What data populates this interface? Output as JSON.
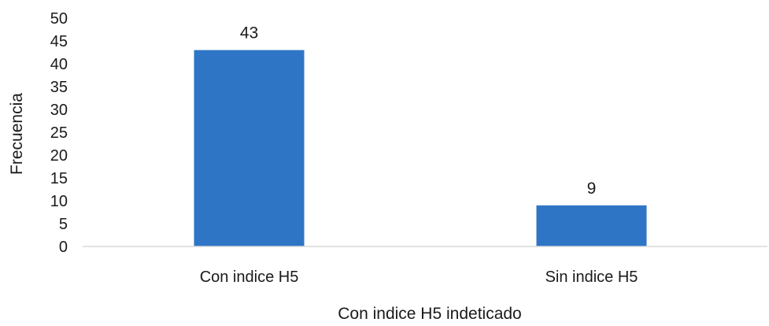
{
  "chart_data": {
    "type": "bar",
    "categories": [
      "Con indice H5",
      "Sin indice H5"
    ],
    "values": [
      43,
      9
    ],
    "data_labels": [
      "43",
      "9"
    ],
    "xlabel": "Con indice H5  indeticado",
    "ylabel": "Frecuencia",
    "ylim": [
      0,
      50
    ],
    "yticks": [
      "0",
      "5",
      "10",
      "15",
      "20",
      "25",
      "30",
      "35",
      "40",
      "45",
      "50"
    ],
    "grid": false,
    "legend": "none",
    "bar_color": "#2e75c6",
    "axis_color": "#d9d9d9"
  }
}
